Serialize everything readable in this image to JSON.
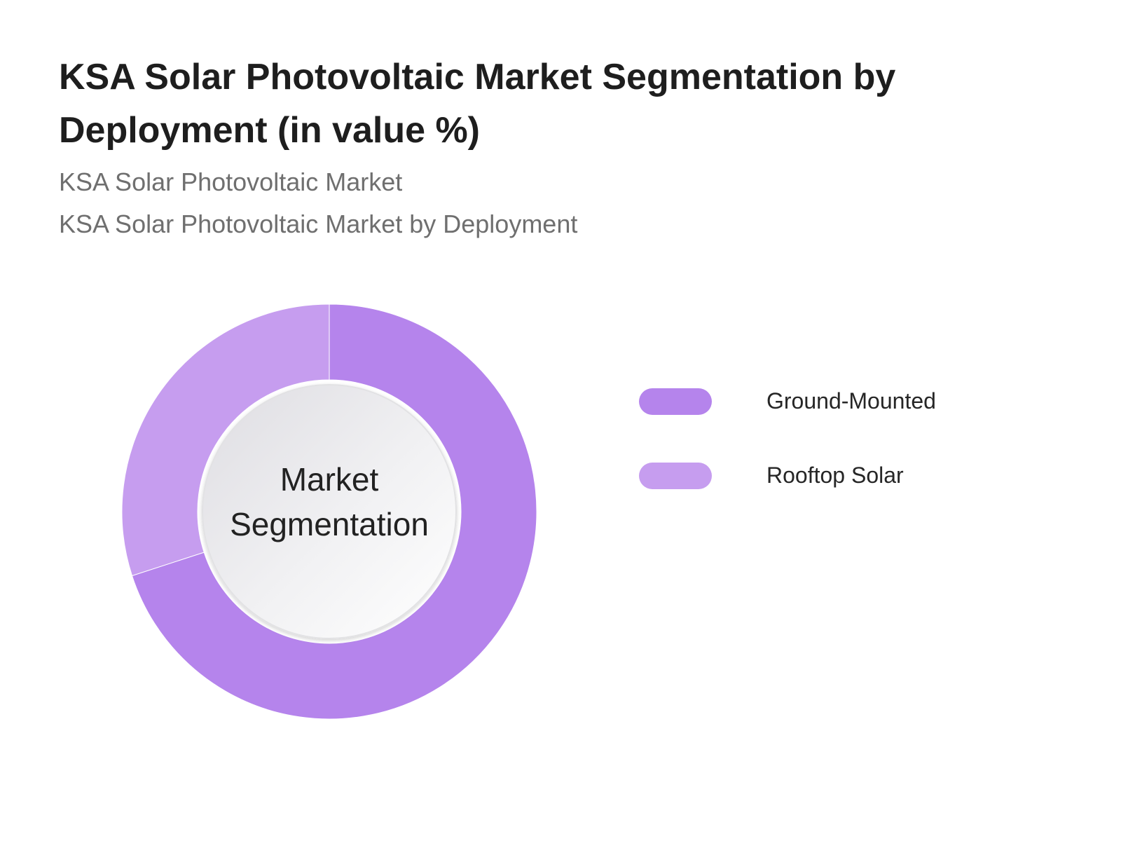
{
  "chart_data": {
    "type": "pie",
    "donut": true,
    "title": "KSA Solar Photovoltaic Market Segmentation by Deployment (in value %)",
    "subtitles": [
      "KSA Solar Photovoltaic Market",
      "KSA Solar Photovoltaic Market by Deployment"
    ],
    "center_label": [
      "Market",
      "Segmentation"
    ],
    "categories": [
      "Ground-Mounted",
      "Rooftop Solar"
    ],
    "values": [
      70,
      30
    ],
    "colors": [
      "#b584ec",
      "#c69def"
    ],
    "legend_position": "right"
  }
}
